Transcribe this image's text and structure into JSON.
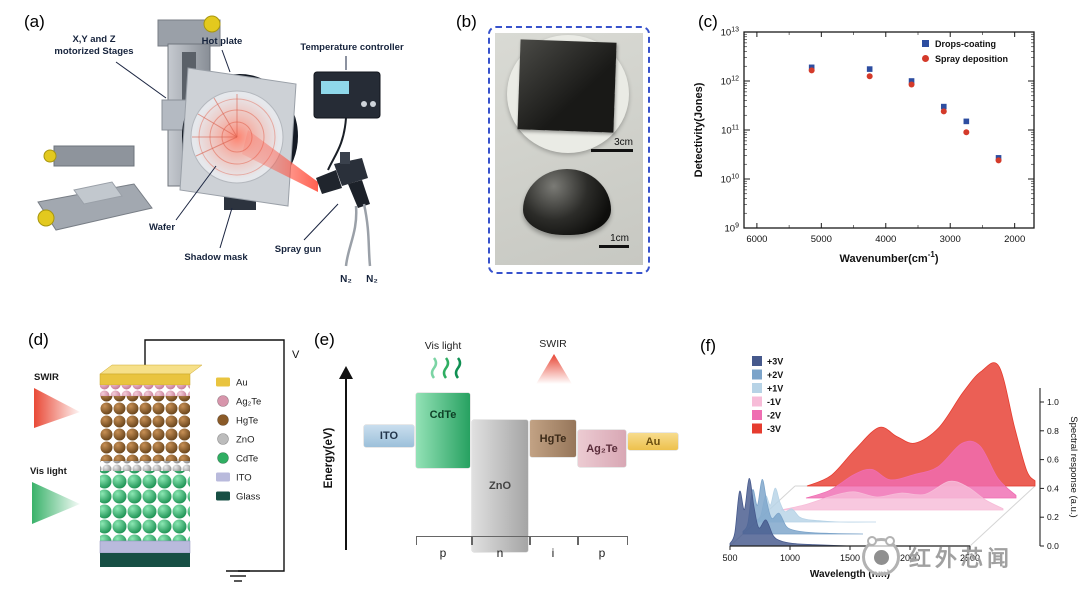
{
  "panels": {
    "a": {
      "label": "(a)",
      "stages_line1": "X,Y and Z",
      "stages_line2": "motorized Stages",
      "hot_plate": "Hot plate",
      "temperature_controller": "Temperature controller",
      "wafer": "Wafer",
      "shadow_mask": "Shadow mask",
      "spray_gun": "Spray gun",
      "n2_left": "N₂",
      "n2_right": "N₂"
    },
    "b": {
      "label": "(b)",
      "scale_film": "3cm",
      "scale_drop": "1cm"
    },
    "c": {
      "label": "(c)"
    },
    "d": {
      "label": "(d)",
      "swir": "SWIR",
      "vis_light": "Vis light",
      "voltage": "V",
      "legend": [
        {
          "name": "Au",
          "color": "#e9c43f",
          "shape": "slab"
        },
        {
          "name": "Ag₂Te",
          "color": "#d795ab",
          "shape": "sphere"
        },
        {
          "name": "HgTe",
          "color": "#8a5a28",
          "shape": "sphere"
        },
        {
          "name": "ZnO",
          "color": "#bcbcbc",
          "shape": "sphere"
        },
        {
          "name": "CdTe",
          "color": "#2fae62",
          "shape": "sphere"
        },
        {
          "name": "ITO",
          "color": "#b9badc",
          "shape": "slab"
        },
        {
          "name": "Glass",
          "color": "#174f44",
          "shape": "slab"
        }
      ]
    },
    "e": {
      "label": "(e)",
      "energy_axis": "Energy(eV)",
      "vis_light": "Vis light",
      "swir": "SWIR",
      "blocks": [
        {
          "name": "ITO"
        },
        {
          "name": "CdTe"
        },
        {
          "name": "ZnO"
        },
        {
          "name": "HgTe"
        },
        {
          "name": "Ag₂Te"
        },
        {
          "name": "Au"
        }
      ],
      "regions": [
        "p",
        "n",
        "i",
        "p"
      ]
    },
    "f": {
      "label": "(f)"
    }
  },
  "watermark": {
    "text": "红外芯闻"
  },
  "chart_data": [
    {
      "panel": "c",
      "type": "scatter",
      "xlabel": "Wavenumber(cm⁻¹)",
      "xlabel_parts": [
        "Wavenumber(cm",
        "-1",
        ")"
      ],
      "ylabel": "Detectivity(Jones)",
      "x_range": [
        6200,
        1700
      ],
      "x_ticks": [
        6000,
        5000,
        4000,
        3000,
        2000
      ],
      "y_scale": "log",
      "y_log_range": [
        9,
        13
      ],
      "y_tick_exponents": [
        9,
        10,
        11,
        12,
        13
      ],
      "legend_position": "top-right",
      "series": [
        {
          "name": "Drops-coating",
          "marker": "square",
          "color": "#2d4da0",
          "points": [
            [
              5150,
              1900000000000.0
            ],
            [
              4250,
              1750000000000.0
            ],
            [
              3600,
              1000000000000.0
            ],
            [
              3100,
              300000000000.0
            ],
            [
              2750,
              150000000000.0
            ],
            [
              2250,
              27000000000.0
            ]
          ]
        },
        {
          "name": "Spray deposition",
          "marker": "circle",
          "color": "#d43a2a",
          "points": [
            [
              5150,
              1650000000000.0
            ],
            [
              4250,
              1250000000000.0
            ],
            [
              3600,
              850000000000.0
            ],
            [
              3100,
              240000000000.0
            ],
            [
              2750,
              90000000000.0
            ],
            [
              2250,
              24000000000.0
            ]
          ]
        }
      ]
    },
    {
      "panel": "f",
      "type": "area",
      "perspective": "stacked-3d",
      "xlabel": "Wavelength (nm)",
      "ylabel": "Spectral response (a.u.)",
      "x_ticks": [
        500,
        1000,
        1500,
        2000,
        2500
      ],
      "y_ticks": [
        "0.0",
        "0.2",
        "0.4",
        "0.6",
        "0.8",
        "1.0"
      ],
      "series": [
        {
          "name": "+3V",
          "color": "#46598c",
          "depth": 0,
          "points": [
            [
              500,
              0.02
            ],
            [
              540,
              0.1
            ],
            [
              580,
              0.42
            ],
            [
              620,
              0.28
            ],
            [
              660,
              0.52
            ],
            [
              700,
              0.3
            ],
            [
              740,
              0.14
            ],
            [
              800,
              0.2
            ],
            [
              860,
              0.08
            ],
            [
              920,
              0.04
            ],
            [
              1020,
              0.02
            ],
            [
              1200,
              0.01
            ],
            [
              1500,
              0
            ]
          ]
        },
        {
          "name": "+2V",
          "color": "#7ba3c9",
          "depth": 1,
          "points": [
            [
              500,
              0.02
            ],
            [
              540,
              0.08
            ],
            [
              580,
              0.34
            ],
            [
              620,
              0.22
            ],
            [
              660,
              0.42
            ],
            [
              700,
              0.24
            ],
            [
              740,
              0.12
            ],
            [
              800,
              0.16
            ],
            [
              860,
              0.06
            ],
            [
              920,
              0.03
            ],
            [
              1020,
              0.015
            ],
            [
              1200,
              0.005
            ],
            [
              1500,
              0
            ]
          ]
        },
        {
          "name": "+1V",
          "color": "#b7d3e6",
          "depth": 2,
          "points": [
            [
              500,
              0.01
            ],
            [
              540,
              0.05
            ],
            [
              580,
              0.2
            ],
            [
              620,
              0.13
            ],
            [
              660,
              0.26
            ],
            [
              700,
              0.15
            ],
            [
              740,
              0.08
            ],
            [
              800,
              0.1
            ],
            [
              860,
              0.04
            ],
            [
              920,
              0.02
            ],
            [
              1020,
              0.01
            ],
            [
              1200,
              0
            ],
            [
              1500,
              0
            ]
          ]
        },
        {
          "name": "-1V",
          "color": "#f7bcd8",
          "depth": 3,
          "points": [
            [
              600,
              0
            ],
            [
              800,
              0.04
            ],
            [
              1000,
              0.1
            ],
            [
              1200,
              0.14
            ],
            [
              1400,
              0.1
            ],
            [
              1600,
              0.13
            ],
            [
              1800,
              0.12
            ],
            [
              2000,
              0.22
            ],
            [
              2150,
              0.18
            ],
            [
              2300,
              0.08
            ],
            [
              2450,
              0.01
            ]
          ]
        },
        {
          "name": "-2V",
          "color": "#ef6db2",
          "depth": 4,
          "points": [
            [
              700,
              0
            ],
            [
              900,
              0.06
            ],
            [
              1100,
              0.18
            ],
            [
              1250,
              0.22
            ],
            [
              1400,
              0.14
            ],
            [
              1600,
              0.18
            ],
            [
              1800,
              0.24
            ],
            [
              2000,
              0.42
            ],
            [
              2150,
              0.4
            ],
            [
              2300,
              0.15
            ],
            [
              2450,
              0.02
            ]
          ]
        },
        {
          "name": "-3V",
          "color": "#e63c2f",
          "depth": 5,
          "points": [
            [
              600,
              0
            ],
            [
              800,
              0.08
            ],
            [
              1000,
              0.28
            ],
            [
              1200,
              0.45
            ],
            [
              1350,
              0.38
            ],
            [
              1500,
              0.33
            ],
            [
              1700,
              0.45
            ],
            [
              1900,
              0.72
            ],
            [
              2050,
              0.88
            ],
            [
              2200,
              0.92
            ],
            [
              2330,
              0.45
            ],
            [
              2430,
              0.12
            ],
            [
              2500,
              0.04
            ]
          ]
        }
      ]
    }
  ]
}
